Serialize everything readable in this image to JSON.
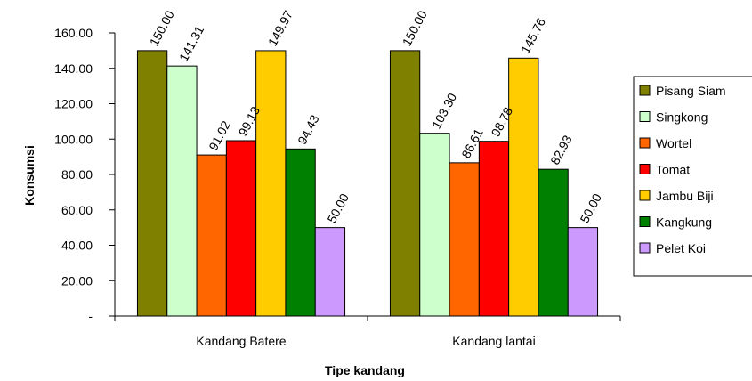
{
  "chart_data": {
    "type": "bar",
    "title": "",
    "xlabel": "Tipe kandang",
    "ylabel": "Konsumsi",
    "categories": [
      "Kandang Batere",
      "Kandang lantai"
    ],
    "ylim": [
      0,
      160
    ],
    "ytick_values": [
      0,
      20,
      40,
      60,
      80,
      100,
      120,
      140,
      160
    ],
    "ytick_labels": [
      "-",
      "20.00",
      "40.00",
      "60.00",
      "80.00",
      "100.00",
      "120.00",
      "140.00",
      "160.00"
    ],
    "grid": false,
    "legend_position": "right",
    "series": [
      {
        "name": "Pisang Siam",
        "values": [
          150.0,
          150.0
        ],
        "labels": [
          "150.00",
          "150.00"
        ],
        "color": "#808000"
      },
      {
        "name": "Singkong",
        "values": [
          141.31,
          103.3
        ],
        "labels": [
          "141.31",
          "103.30"
        ],
        "color": "#ccffcc"
      },
      {
        "name": "Wortel",
        "values": [
          91.02,
          86.61
        ],
        "labels": [
          "91.02",
          "86.61"
        ],
        "color": "#ff6600"
      },
      {
        "name": "Tomat",
        "values": [
          99.13,
          98.78
        ],
        "labels": [
          "99.13",
          "98.78"
        ],
        "color": "#ff0000"
      },
      {
        "name": "Jambu Biji",
        "values": [
          149.97,
          145.76
        ],
        "labels": [
          "149.97",
          "145.76"
        ],
        "color": "#ffcc00"
      },
      {
        "name": "Kangkung",
        "values": [
          94.43,
          82.93
        ],
        "labels": [
          "94.43",
          "82.93"
        ],
        "color": "#008000"
      },
      {
        "name": "Pelet Koi",
        "values": [
          50.0,
          50.0
        ],
        "labels": [
          "50.00",
          "50.00"
        ],
        "color": "#cc99ff"
      }
    ]
  }
}
